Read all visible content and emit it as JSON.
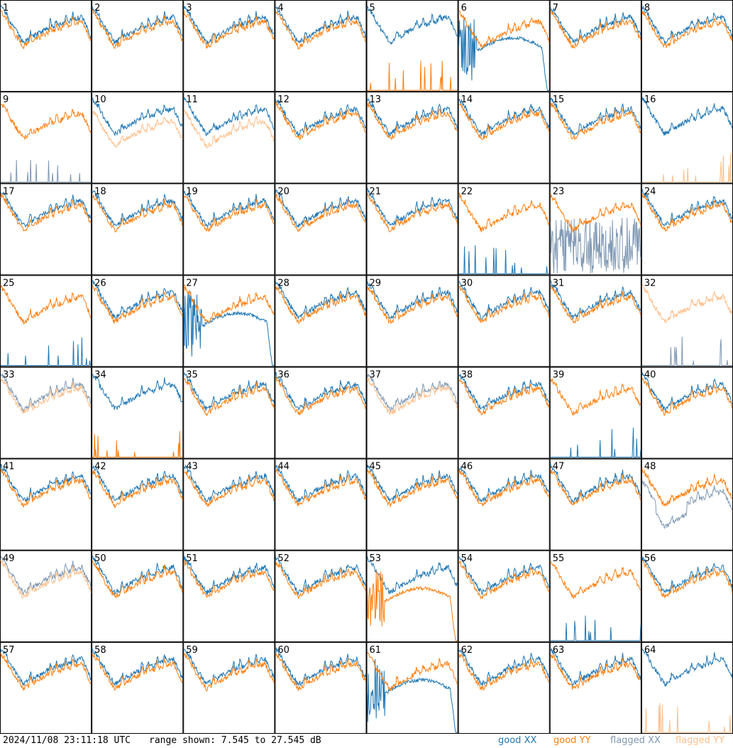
{
  "chart_data": {
    "type": "line",
    "layout": "8x8 grid of small-multiple spectrum plots",
    "panel_labels": [
      "1",
      "2",
      "3",
      "4",
      "5",
      "6",
      "7",
      "8",
      "9",
      "10",
      "11",
      "12",
      "13",
      "14",
      "15",
      "16",
      "17",
      "18",
      "19",
      "20",
      "21",
      "22",
      "23",
      "24",
      "25",
      "26",
      "27",
      "28",
      "29",
      "30",
      "31",
      "32",
      "33",
      "34",
      "35",
      "36",
      "37",
      "38",
      "39",
      "40",
      "41",
      "42",
      "43",
      "44",
      "45",
      "46",
      "47",
      "48",
      "49",
      "50",
      "51",
      "52",
      "53",
      "54",
      "55",
      "56",
      "57",
      "58",
      "59",
      "60",
      "61",
      "62",
      "63",
      "64"
    ],
    "y_range_db": [
      7.545,
      27.545
    ],
    "x_range_normalized": [
      0,
      1
    ],
    "series_legend": [
      {
        "name": "good XX",
        "color": "#1f77b4"
      },
      {
        "name": "good YY",
        "color": "#ff7f0e"
      },
      {
        "name": "flagged XX",
        "color": "#7f98b3"
      },
      {
        "name": "flagged YY",
        "color": "#ffbf8a"
      }
    ],
    "panel_status": {
      "5": {
        "xx": "normal",
        "yy": "dead"
      },
      "6": {
        "xx": "mode",
        "yy": "normal"
      },
      "9": {
        "xx": "dead-flagged",
        "yy": "normal"
      },
      "10": {
        "xx": "normal",
        "yy": "lowered-flagged"
      },
      "11": {
        "xx": "normal",
        "yy": "lowered-flagged"
      },
      "16": {
        "xx": "normal",
        "yy": "dead-flagged"
      },
      "22": {
        "xx": "dead",
        "yy": "normal"
      },
      "23": {
        "xx": "noisy-flagged",
        "yy": "normal"
      },
      "25": {
        "xx": "dead",
        "yy": "normal"
      },
      "27": {
        "xx": "mode",
        "yy": "normal"
      },
      "32": {
        "xx": "dead-flagged",
        "yy": "flagged"
      },
      "33": {
        "xx": "flagged",
        "yy": "flagged"
      },
      "34": {
        "xx": "normal",
        "yy": "dead"
      },
      "37": {
        "xx": "flagged",
        "yy": "flagged"
      },
      "39": {
        "xx": "dead",
        "yy": "normal"
      },
      "48": {
        "xx": "flagged-dip",
        "yy": "normal"
      },
      "49": {
        "xx": "flagged",
        "yy": "flagged"
      },
      "53": {
        "xx": "normal",
        "yy": "mode"
      },
      "55": {
        "xx": "dead",
        "yy": "normal"
      },
      "61": {
        "xx": "mode",
        "yy": "normal"
      },
      "64": {
        "xx": "normal",
        "yy": "dead-flagged"
      }
    }
  },
  "footer": {
    "timestamp": "2024/11/08 23:11:18 UTC",
    "range": "range shown: 7.545 to 27.545 dB"
  },
  "legend": [
    {
      "label": "good",
      "pol": "XX",
      "color": "#1f77b4"
    },
    {
      "label": "good",
      "pol": "YY",
      "color": "#ff7f0e"
    },
    {
      "label": "flagged",
      "pol": "XX",
      "color": "#7f98b3"
    },
    {
      "label": "flagged",
      "pol": "YY",
      "color": "#ffbf8a"
    }
  ]
}
